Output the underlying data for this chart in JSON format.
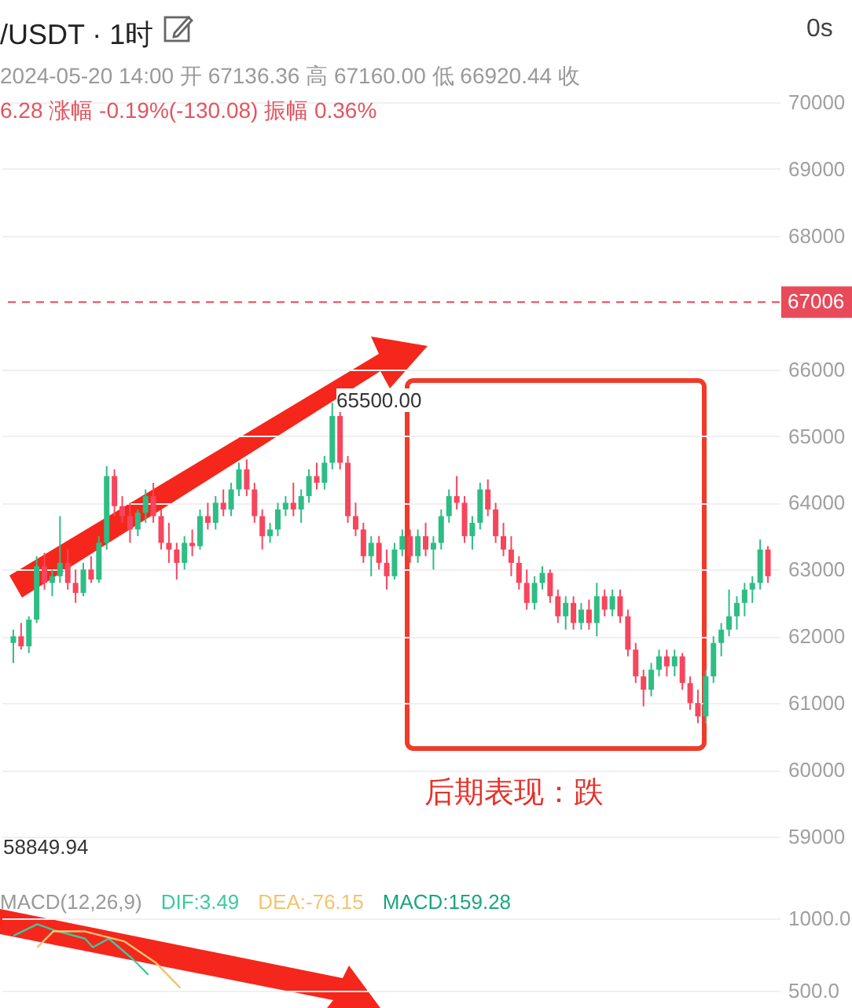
{
  "chart_data": [
    {
      "type": "candlestick",
      "title": "/USDT · 1时",
      "subtitle": "2024-05-20 14:00  开 67136.36  高 67160.00  低 66920.44  收",
      "annotations": [
        "6.28  涨幅 -0.19%(-130.08)  振幅 0.36%",
        "0s",
        "后期表现：跌",
        "65500.00",
        "58849.94"
      ],
      "categories": [
        null,
        null,
        null,
        null,
        null,
        null,
        null,
        null,
        null,
        null,
        null,
        null,
        null,
        null,
        null,
        null,
        null,
        null,
        null,
        null,
        null,
        null,
        null,
        null,
        null,
        null,
        null,
        null,
        null,
        null,
        null,
        null,
        null,
        null,
        null,
        null,
        null,
        null,
        null,
        null,
        null,
        null,
        null,
        null,
        null,
        null,
        null,
        null,
        null,
        null,
        null,
        null,
        null,
        null,
        null,
        null,
        null,
        null,
        null,
        null,
        null,
        null,
        null,
        null,
        null,
        null,
        null,
        null,
        null,
        null,
        null,
        null,
        null,
        null,
        null,
        null,
        null,
        null,
        null,
        null,
        null,
        null,
        null,
        null,
        null,
        null,
        null,
        null,
        null,
        null,
        null,
        null,
        null,
        null,
        null,
        null,
        null,
        null
      ],
      "ohlc": [
        [
          61900,
          62100,
          61600,
          62000
        ],
        [
          62000,
          62200,
          61800,
          61850
        ],
        [
          61850,
          62300,
          61750,
          62250
        ],
        [
          62250,
          63200,
          62200,
          63050
        ],
        [
          63050,
          63250,
          62700,
          62800
        ],
        [
          62800,
          63000,
          62600,
          62900
        ],
        [
          62900,
          63800,
          62800,
          63100
        ],
        [
          63100,
          63300,
          62700,
          62800
        ],
        [
          62800,
          63000,
          62500,
          62650
        ],
        [
          62650,
          63100,
          62600,
          63000
        ],
        [
          63000,
          63200,
          62800,
          62850
        ],
        [
          62850,
          63500,
          62800,
          63400
        ],
        [
          63400,
          64550,
          63300,
          64400
        ],
        [
          64400,
          64500,
          63800,
          63950
        ],
        [
          63950,
          64100,
          63700,
          63800
        ],
        [
          63800,
          64000,
          63400,
          63600
        ],
        [
          63600,
          63900,
          63500,
          63850
        ],
        [
          63850,
          64200,
          63700,
          64100
        ],
        [
          64100,
          64300,
          63700,
          63800
        ],
        [
          63800,
          63900,
          63300,
          63400
        ],
        [
          63400,
          63700,
          63100,
          63300
        ],
        [
          63300,
          63400,
          62850,
          63100
        ],
        [
          63100,
          63500,
          63000,
          63400
        ],
        [
          63400,
          63600,
          63200,
          63350
        ],
        [
          63350,
          63900,
          63300,
          63800
        ],
        [
          63800,
          64000,
          63600,
          63700
        ],
        [
          63700,
          64100,
          63600,
          64000
        ],
        [
          64000,
          64200,
          63800,
          63900
        ],
        [
          63900,
          64300,
          63800,
          64200
        ],
        [
          64200,
          64600,
          64100,
          64500
        ],
        [
          64500,
          64650,
          64100,
          64200
        ],
        [
          64200,
          64300,
          63700,
          63800
        ],
        [
          63800,
          63900,
          63300,
          63500
        ],
        [
          63500,
          63700,
          63400,
          63600
        ],
        [
          63600,
          64000,
          63500,
          63900
        ],
        [
          63900,
          64100,
          63800,
          64000
        ],
        [
          64000,
          64300,
          63800,
          63900
        ],
        [
          63900,
          64200,
          63700,
          64100
        ],
        [
          64100,
          64500,
          64000,
          64400
        ],
        [
          64400,
          64600,
          64200,
          64300
        ],
        [
          64300,
          64700,
          64200,
          64600
        ],
        [
          64600,
          65500,
          64500,
          65300
        ],
        [
          65300,
          65400,
          64500,
          64600
        ],
        [
          64600,
          64700,
          63700,
          63800
        ],
        [
          63800,
          64000,
          63500,
          63600
        ],
        [
          63600,
          63700,
          63100,
          63200
        ],
        [
          63200,
          63500,
          62900,
          63400
        ],
        [
          63400,
          63500,
          63000,
          63100
        ],
        [
          63100,
          63300,
          62700,
          62900
        ],
        [
          62900,
          63400,
          62850,
          63300
        ],
        [
          63300,
          63600,
          63200,
          63500
        ],
        [
          63500,
          63600,
          63100,
          63200
        ],
        [
          63200,
          63600,
          63100,
          63500
        ],
        [
          63500,
          63700,
          63200,
          63300
        ],
        [
          63300,
          63500,
          63000,
          63400
        ],
        [
          63400,
          63900,
          63300,
          63800
        ],
        [
          63800,
          64200,
          63700,
          64100
        ],
        [
          64100,
          64400,
          63900,
          64000
        ],
        [
          64000,
          64100,
          63400,
          63500
        ],
        [
          63500,
          63800,
          63300,
          63700
        ],
        [
          63700,
          64300,
          63600,
          64200
        ],
        [
          64200,
          64350,
          63800,
          63900
        ],
        [
          63900,
          64000,
          63400,
          63500
        ],
        [
          63500,
          63700,
          63200,
          63300
        ],
        [
          63300,
          63500,
          62900,
          63100
        ],
        [
          63100,
          63200,
          62700,
          62800
        ],
        [
          62800,
          63000,
          62400,
          62500
        ],
        [
          62500,
          62900,
          62400,
          62800
        ],
        [
          62800,
          63050,
          62700,
          62950
        ],
        [
          62950,
          63000,
          62500,
          62600
        ],
        [
          62600,
          62700,
          62200,
          62300
        ],
        [
          62300,
          62600,
          62100,
          62500
        ],
        [
          62500,
          62600,
          62100,
          62200
        ],
        [
          62200,
          62500,
          62100,
          62400
        ],
        [
          62400,
          62550,
          62100,
          62200
        ],
        [
          62200,
          62800,
          62000,
          62600
        ],
        [
          62600,
          62700,
          62300,
          62400
        ],
        [
          62400,
          62700,
          62300,
          62600
        ],
        [
          62600,
          62700,
          62200,
          62300
        ],
        [
          62300,
          62400,
          61700,
          61800
        ],
        [
          61800,
          61900,
          61300,
          61400
        ],
        [
          61400,
          61500,
          60950,
          61200
        ],
        [
          61200,
          61600,
          61100,
          61500
        ],
        [
          61500,
          61800,
          61400,
          61700
        ],
        [
          61700,
          61800,
          61400,
          61550
        ],
        [
          61550,
          61800,
          61400,
          61700
        ],
        [
          61700,
          61750,
          61200,
          61300
        ],
        [
          61300,
          61400,
          60900,
          61000
        ],
        [
          61000,
          61200,
          60700,
          60800
        ],
        [
          60800,
          61500,
          60700,
          61400
        ],
        [
          61400,
          62000,
          61300,
          61900
        ],
        [
          61900,
          62200,
          61700,
          62100
        ],
        [
          62100,
          62700,
          62000,
          62300
        ],
        [
          62300,
          62600,
          62100,
          62500
        ],
        [
          62500,
          62800,
          62300,
          62700
        ],
        [
          62700,
          62900,
          62500,
          62800
        ],
        [
          62800,
          63450,
          62700,
          63300
        ],
        [
          63300,
          63350,
          62800,
          62900
        ]
      ],
      "colors": [
        "#2ebd85",
        "#f6465d",
        "#2ebd85",
        "#2ebd85",
        "#f6465d",
        "#2ebd85",
        "#2ebd85",
        "#f6465d",
        "#f6465d",
        "#2ebd85",
        "#f6465d",
        "#2ebd85",
        "#2ebd85",
        "#f6465d",
        "#f6465d",
        "#f6465d",
        "#2ebd85",
        "#2ebd85",
        "#f6465d",
        "#f6465d",
        "#f6465d",
        "#f6465d",
        "#2ebd85",
        "#f6465d",
        "#2ebd85",
        "#f6465d",
        "#2ebd85",
        "#f6465d",
        "#2ebd85",
        "#2ebd85",
        "#f6465d",
        "#f6465d",
        "#f6465d",
        "#2ebd85",
        "#2ebd85",
        "#2ebd85",
        "#f6465d",
        "#2ebd85",
        "#2ebd85",
        "#f6465d",
        "#2ebd85",
        "#2ebd85",
        "#f6465d",
        "#f6465d",
        "#f6465d",
        "#f6465d",
        "#2ebd85",
        "#f6465d",
        "#f6465d",
        "#2ebd85",
        "#2ebd85",
        "#f6465d",
        "#2ebd85",
        "#f6465d",
        "#2ebd85",
        "#2ebd85",
        "#2ebd85",
        "#f6465d",
        "#f6465d",
        "#2ebd85",
        "#2ebd85",
        "#f6465d",
        "#f6465d",
        "#f6465d",
        "#f6465d",
        "#f6465d",
        "#f6465d",
        "#2ebd85",
        "#2ebd85",
        "#f6465d",
        "#f6465d",
        "#2ebd85",
        "#f6465d",
        "#2ebd85",
        "#f6465d",
        "#2ebd85",
        "#f6465d",
        "#2ebd85",
        "#f6465d",
        "#f6465d",
        "#f6465d",
        "#f6465d",
        "#2ebd85",
        "#2ebd85",
        "#f6465d",
        "#2ebd85",
        "#f6465d",
        "#f6465d",
        "#f6465d",
        "#2ebd85",
        "#2ebd85",
        "#2ebd85",
        "#2ebd85",
        "#2ebd85",
        "#2ebd85",
        "#2ebd85",
        "#2ebd85",
        "#f6465d"
      ],
      "ylim": [
        59000,
        70000
      ],
      "yticks": [
        59000,
        60000,
        61000,
        62000,
        63000,
        64000,
        65000,
        66000,
        68000,
        69000,
        70000
      ],
      "grid": "y",
      "ref_lines": [
        {
          "axis": "y",
          "value": 67006,
          "label": "67006",
          "color": "#e84a5a",
          "line_style": "dashed"
        }
      ]
    },
    {
      "type": "line",
      "legend_title": "MACD(12,26,9)",
      "legend": "top left",
      "annotations": [
        "MACD:159.28"
      ],
      "categories": [
        null,
        null,
        null,
        null,
        null,
        null,
        null,
        null,
        null,
        null,
        null,
        null,
        null,
        null,
        null,
        null,
        null,
        null,
        null,
        null,
        null,
        null,
        null,
        null,
        null,
        null,
        null,
        null,
        null,
        null,
        null,
        null,
        null,
        null,
        null,
        null,
        null,
        null,
        null,
        null,
        null,
        null,
        null,
        null,
        null,
        null,
        null,
        null,
        null,
        null,
        null,
        null,
        null,
        null,
        null,
        null,
        null,
        null,
        null,
        null,
        null,
        null,
        null,
        null,
        null,
        null,
        null,
        null,
        null,
        null,
        null,
        null,
        null,
        null,
        null,
        null,
        null,
        null,
        null,
        null,
        null,
        null,
        null,
        null,
        null,
        null,
        null,
        null,
        null,
        null,
        null,
        null,
        null,
        null,
        null,
        null,
        null,
        null
      ],
      "series": [
        {
          "name": "DIF:3.49",
          "color": "#3cc8a0",
          "values": [
            null,
            880,
            null,
            null,
            960,
            null,
            920,
            null,
            null,
            null,
            860,
            800,
            null,
            860,
            null,
            null,
            720,
            null,
            610,
            null,
            null,
            null,
            null,
            null,
            null,
            null,
            null,
            null,
            null,
            null,
            null,
            null,
            null,
            null,
            null,
            null,
            null,
            null,
            null,
            null,
            null,
            null,
            null,
            null,
            null,
            null,
            null,
            null,
            null,
            null,
            null,
            null,
            null,
            null,
            null,
            null,
            null,
            null,
            null,
            null,
            null,
            null,
            null,
            null,
            null,
            null,
            null,
            null,
            null,
            null,
            null,
            null,
            null,
            null,
            null,
            null,
            null,
            null,
            null,
            null,
            null,
            null,
            null,
            null,
            null,
            null,
            null,
            null,
            null,
            null,
            null,
            null,
            null,
            null,
            null,
            null,
            null,
            null
          ]
        },
        {
          "name": "DEA:-76.15",
          "color": "#f2c46f",
          "values": [
            null,
            null,
            null,
            null,
            800,
            null,
            910,
            null,
            null,
            null,
            910,
            null,
            null,
            null,
            null,
            840,
            null,
            null,
            null,
            690,
            null,
            null,
            520,
            null,
            null,
            null,
            null,
            null,
            null,
            null,
            null,
            null,
            null,
            null,
            null,
            null,
            null,
            null,
            null,
            null,
            null,
            null,
            null,
            null,
            null,
            null,
            null,
            null,
            null,
            null,
            null,
            null,
            null,
            null,
            null,
            null,
            null,
            null,
            null,
            null,
            null,
            null,
            null,
            null,
            null,
            null,
            null,
            null,
            null,
            null,
            null,
            null,
            null,
            null,
            null,
            null,
            null,
            null,
            null,
            null,
            null,
            null,
            null,
            null,
            null,
            null,
            null,
            null,
            null,
            null,
            null,
            null,
            null,
            null,
            null,
            null,
            null,
            null
          ]
        }
      ],
      "ylim": [
        500,
        1000
      ],
      "yticks": [
        {
          "value": 1000,
          "label": "1000.0"
        },
        {
          "value": 500,
          "label": "500.0"
        }
      ],
      "grid": "y"
    }
  ]
}
